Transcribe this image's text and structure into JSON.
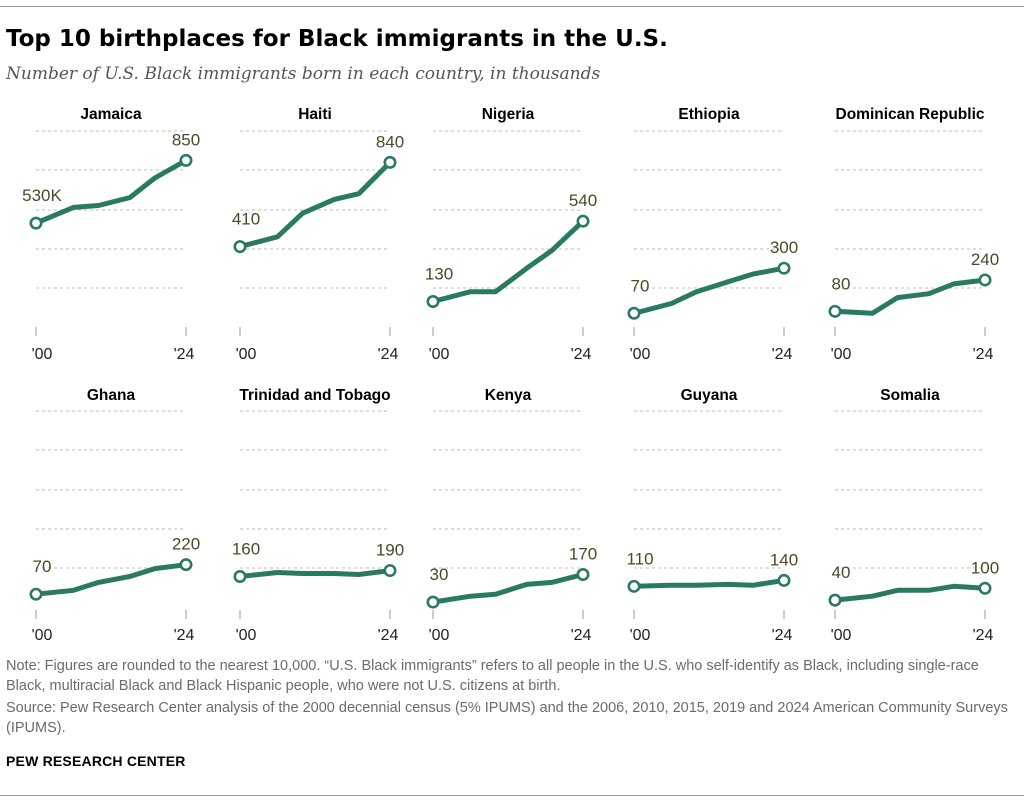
{
  "header": {
    "title": "Top 10 birthplaces for Black immigrants in the U.S.",
    "subtitle": "Number of U.S. Black immigrants born in each country, in thousands"
  },
  "footer": {
    "note": "Note: Figures are rounded to the nearest 10,000. “U.S. Black immigrants” refers to all people in the U.S. who self-identify as Black, including single-race Black, multiracial Black and Black Hispanic people, who were not U.S. citizens at birth.",
    "source": "Source: Pew Research Center analysis of the 2000 decennial census (5% IPUMS) and the 2006, 2010, 2015, 2019 and 2024 American Community Surveys (IPUMS).",
    "brand": "PEW RESEARCH CENTER"
  },
  "colors": {
    "line": "#2a7a62",
    "gridline": "#bdbdbd",
    "label": "#4a4a2a",
    "axis": "#9a9a9a"
  },
  "chart_data": {
    "type": "line",
    "x": [
      2000,
      2006,
      2010,
      2015,
      2019,
      2024
    ],
    "x_tick_labels": [
      "'00",
      "'24"
    ],
    "ylim": [
      0,
      1000
    ],
    "grid": true,
    "panels": [
      {
        "name": "Jamaica",
        "values": [
          530,
          610,
          620,
          660,
          760,
          850
        ],
        "start_label": "530K",
        "end_label": "850"
      },
      {
        "name": "Haiti",
        "values": [
          410,
          460,
          580,
          650,
          680,
          840
        ],
        "start_label": "410",
        "end_label": "840"
      },
      {
        "name": "Nigeria",
        "values": [
          130,
          180,
          180,
          300,
          390,
          540
        ],
        "start_label": "130",
        "end_label": "540"
      },
      {
        "name": "Ethiopia",
        "values": [
          70,
          120,
          180,
          230,
          270,
          300
        ],
        "start_label": "70",
        "end_label": "300"
      },
      {
        "name": "Dominican Republic",
        "values": [
          80,
          70,
          150,
          170,
          220,
          240
        ],
        "start_label": "80",
        "end_label": "240"
      },
      {
        "name": "Ghana",
        "values": [
          70,
          90,
          130,
          160,
          200,
          220
        ],
        "start_label": "70",
        "end_label": "220"
      },
      {
        "name": "Trinidad and Tobago",
        "values": [
          160,
          180,
          175,
          175,
          170,
          190
        ],
        "start_label": "160",
        "end_label": "190"
      },
      {
        "name": "Kenya",
        "values": [
          30,
          60,
          70,
          120,
          130,
          170
        ],
        "start_label": "30",
        "end_label": "170"
      },
      {
        "name": "Guyana",
        "values": [
          110,
          115,
          115,
          120,
          115,
          140
        ],
        "start_label": "110",
        "end_label": "140"
      },
      {
        "name": "Somalia",
        "values": [
          40,
          60,
          90,
          90,
          110,
          100
        ],
        "start_label": "40",
        "end_label": "100"
      }
    ]
  }
}
